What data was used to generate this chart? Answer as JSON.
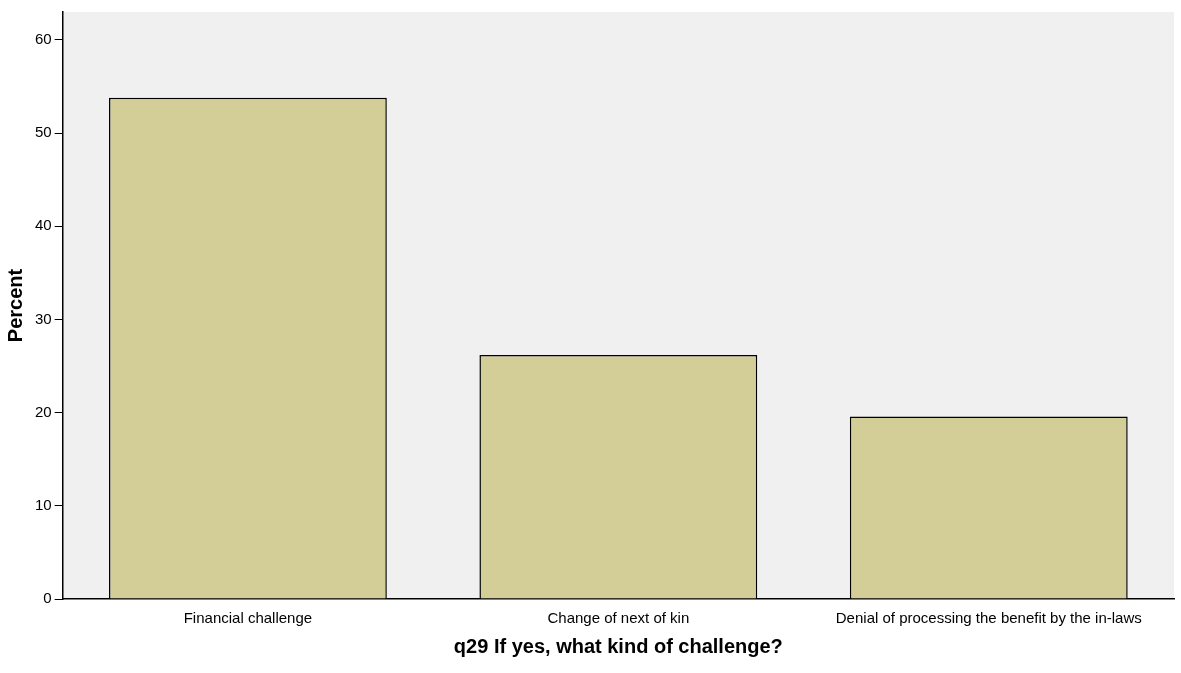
{
  "chart_data": {
    "type": "bar",
    "xlabel": "q29 If yes, what kind of challenge?",
    "ylabel": "Percent",
    "categories": [
      "Financial challenge",
      "Change of next of kin",
      "Denial of processing the benefit by the in-laws"
    ],
    "values": [
      53.8,
      26.2,
      19.6
    ],
    "color": "#d3ce97",
    "ylim": [
      0,
      63
    ],
    "yticks": [
      0,
      10,
      20,
      30,
      40,
      50,
      60
    ],
    "grid": false,
    "legend": false
  }
}
